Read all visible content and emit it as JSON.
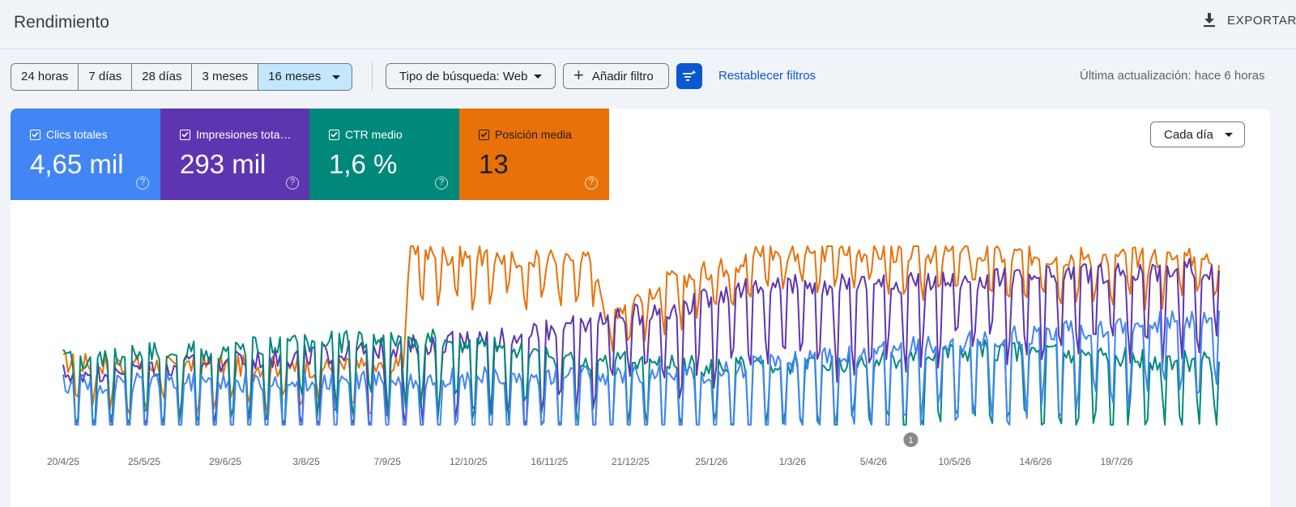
{
  "header": {
    "title": "Rendimiento",
    "export_label": "EXPORTAR"
  },
  "toolbar": {
    "ranges": [
      {
        "label": "24 horas",
        "selected": false
      },
      {
        "label": "7 días",
        "selected": false
      },
      {
        "label": "28 días",
        "selected": false
      },
      {
        "label": "3 meses",
        "selected": false
      },
      {
        "label": "16 meses",
        "selected": true
      }
    ],
    "search_type_label": "Tipo de búsqueda: Web",
    "add_filter_label": "Añadir filtro",
    "reset_filters_label": "Restablecer filtros",
    "last_update": "Última actualización: hace 6 horas"
  },
  "metrics": {
    "clicks": {
      "label": "Clics totales",
      "value": "4,65 mil",
      "checked": true,
      "color": "#4285f4"
    },
    "impressions": {
      "label": "Impresiones totales",
      "value": "293 mil",
      "checked": true,
      "color": "#5e35b1"
    },
    "ctr": {
      "label": "CTR medio",
      "value": "1,6 %",
      "checked": true,
      "color": "#00897b"
    },
    "position": {
      "label": "Posición media",
      "value": "13",
      "checked": true,
      "color": "#e8710a"
    }
  },
  "granularity": {
    "label": "Cada día"
  },
  "chart_data": {
    "type": "line",
    "x_tick_labels": [
      "20/4/25",
      "25/5/25",
      "29/6/25",
      "3/8/25",
      "7/9/25",
      "12/10/25",
      "16/11/25",
      "21/12/25",
      "25/1/26",
      "1/3/26",
      "5/4/26",
      "10/5/26",
      "14/6/26",
      "19/7/26"
    ],
    "annotation_label": "1",
    "annotation_date": "5/4/26",
    "series": [
      {
        "name": "Posición media",
        "color": "#e8710a",
        "shape": [
          [
            0,
            0.36
          ],
          [
            0.29,
            0.33
          ],
          [
            0.3,
            0.96
          ],
          [
            0.46,
            0.92
          ],
          [
            0.47,
            0.63
          ],
          [
            0.52,
            0.8
          ],
          [
            0.59,
            0.92
          ],
          [
            0.6,
            0.98
          ],
          [
            1,
            0.93
          ]
        ],
        "weekly_dip": 0.2
      },
      {
        "name": "Impresiones totales",
        "color": "#5e35b1",
        "shape": [
          [
            0,
            0.3
          ],
          [
            0.25,
            0.42
          ],
          [
            0.4,
            0.52
          ],
          [
            0.52,
            0.65
          ],
          [
            0.6,
            0.78
          ],
          [
            0.75,
            0.8
          ],
          [
            1,
            0.88
          ]
        ],
        "weekly_dip": 0.38
      },
      {
        "name": "CTR medio",
        "color": "#00897b",
        "shape": [
          [
            0,
            0.38
          ],
          [
            0.3,
            0.5
          ],
          [
            0.45,
            0.38
          ],
          [
            0.6,
            0.33
          ],
          [
            0.8,
            0.43
          ],
          [
            1,
            0.36
          ]
        ],
        "weekly_dip": 0.34
      },
      {
        "name": "Clics totales",
        "color": "#4285f4",
        "shape": [
          [
            0,
            0.24
          ],
          [
            0.3,
            0.27
          ],
          [
            0.55,
            0.3
          ],
          [
            0.75,
            0.46
          ],
          [
            1,
            0.62
          ]
        ],
        "weekly_dip": 0.38
      }
    ],
    "grid": false,
    "legend": "top"
  }
}
